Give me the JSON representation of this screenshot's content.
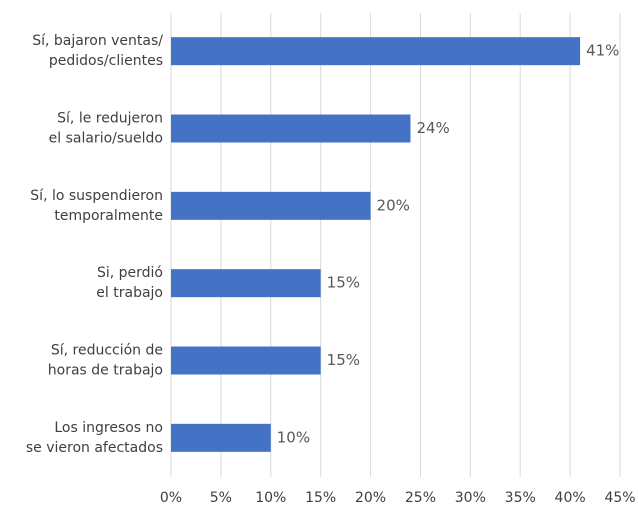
{
  "chart_data": {
    "type": "barh",
    "categories": [
      [
        "Sí, bajaron ventas/",
        "pedidos/clientes"
      ],
      [
        "Sí, le redujeron",
        "el salario/sueldo"
      ],
      [
        "Sí, lo suspendieron",
        "temporalmente"
      ],
      [
        "Si, perdió",
        "el trabajo"
      ],
      [
        "Sí, reducción de",
        "horas de trabajo"
      ],
      [
        "Los ingresos no",
        "se vieron afectados"
      ]
    ],
    "values": [
      41,
      24,
      20,
      15,
      15,
      10
    ],
    "value_labels": [
      "41%",
      "24%",
      "20%",
      "15%",
      "15%",
      "10%"
    ],
    "color": "#4472c4",
    "xlim": [
      0,
      45
    ],
    "xticks": [
      {
        "value": 0,
        "label": "0%"
      },
      {
        "value": 5,
        "label": "5%"
      },
      {
        "value": 10,
        "label": "10%"
      },
      {
        "value": 15,
        "label": "15%"
      },
      {
        "value": 20,
        "label": "20%"
      },
      {
        "value": 25,
        "label": "25%"
      },
      {
        "value": 30,
        "label": "30%"
      },
      {
        "value": 35,
        "label": "35%"
      },
      {
        "value": 40,
        "label": "40%"
      },
      {
        "value": 45,
        "label": "45%"
      }
    ],
    "grid": true
  }
}
